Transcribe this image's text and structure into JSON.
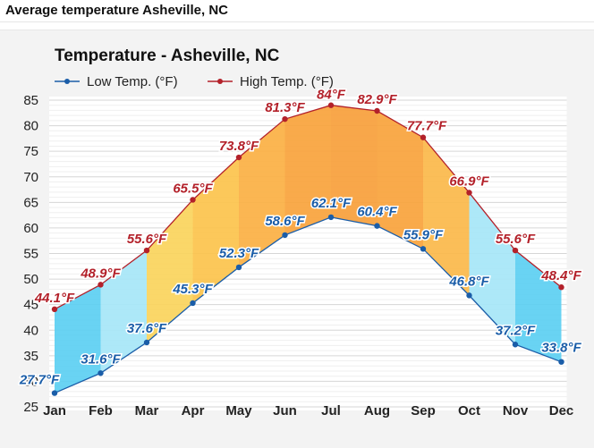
{
  "page_title": "Average temperature Asheville, NC",
  "chart_data": {
    "type": "area",
    "title": "Temperature - Asheville, NC",
    "xlabel": "",
    "ylabel": "",
    "categories": [
      "Jan",
      "Feb",
      "Mar",
      "Apr",
      "May",
      "Jun",
      "Jul",
      "Aug",
      "Sep",
      "Oct",
      "Nov",
      "Dec"
    ],
    "ylim": [
      25,
      85
    ],
    "yticks": [
      25,
      30,
      35,
      40,
      45,
      50,
      55,
      60,
      65,
      70,
      75,
      80,
      85
    ],
    "grid": true,
    "legend_position": "top-left",
    "unit_suffix": "°F",
    "series": [
      {
        "name": "Low Temp. (°F)",
        "color": "#1a5da8",
        "values": [
          27.7,
          31.6,
          37.6,
          45.3,
          52.3,
          58.6,
          62.1,
          60.4,
          55.9,
          46.8,
          37.2,
          33.8
        ]
      },
      {
        "name": "High Temp. (°F)",
        "color": "#b3212a",
        "values": [
          44.1,
          48.9,
          55.6,
          65.5,
          73.8,
          81.3,
          84,
          82.9,
          77.7,
          66.9,
          55.6,
          48.4
        ]
      }
    ],
    "band_colors": [
      "#5ccff2",
      "#a6e6f7",
      "#fad45c",
      "#fcc34c",
      "#fbb043",
      "#f8a33c",
      "#f79f3b",
      "#f8a33c",
      "#fbb94a",
      "#a6e6f7",
      "#5ccff2"
    ]
  }
}
